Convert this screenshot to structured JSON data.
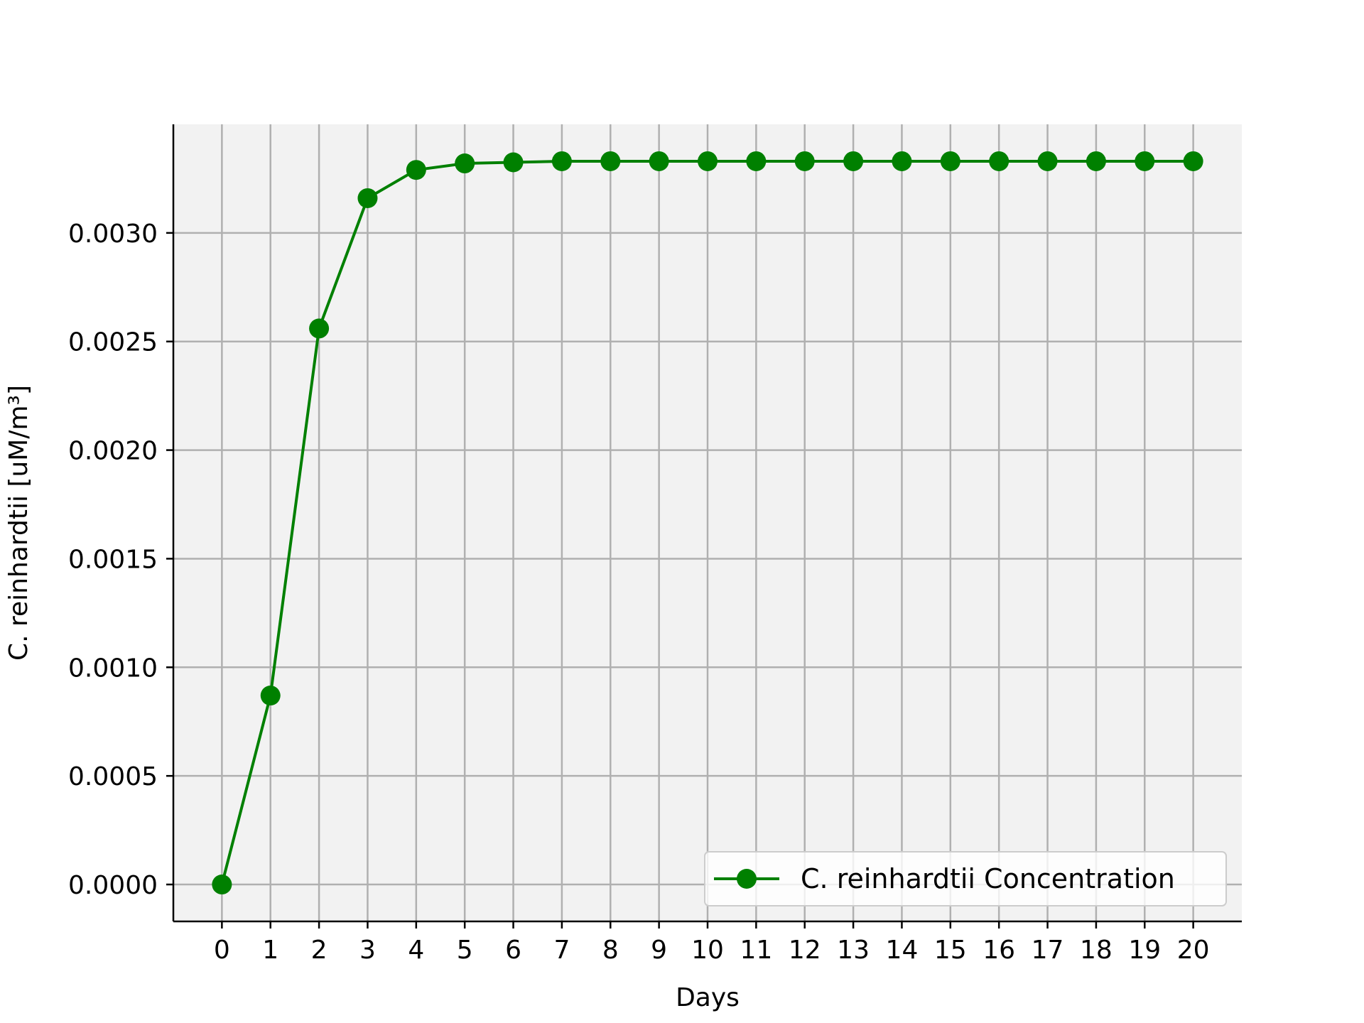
{
  "chart_data": {
    "type": "line",
    "title": "",
    "xlabel": "Days",
    "ylabel": "C. reinhardtii [uM/m³]",
    "x": [
      0,
      1,
      2,
      3,
      4,
      5,
      6,
      7,
      8,
      9,
      10,
      11,
      12,
      13,
      14,
      15,
      16,
      17,
      18,
      19,
      20
    ],
    "series": [
      {
        "name": "C. reinhardtii Concentration",
        "color": "#008000",
        "marker": "circle",
        "values": [
          0.0,
          0.00087,
          0.00256,
          0.00316,
          0.00329,
          0.00332,
          0.003325,
          0.00333,
          0.00333,
          0.00333,
          0.00333,
          0.00333,
          0.00333,
          0.00333,
          0.00333,
          0.00333,
          0.00333,
          0.00333,
          0.00333,
          0.00333,
          0.00333
        ]
      }
    ],
    "xticks": [
      "0",
      "1",
      "2",
      "3",
      "4",
      "5",
      "6",
      "7",
      "8",
      "9",
      "10",
      "11",
      "12",
      "13",
      "14",
      "15",
      "16",
      "17",
      "18",
      "19",
      "20"
    ],
    "yticks": [
      "0.0000",
      "0.0005",
      "0.0010",
      "0.0015",
      "0.0020",
      "0.0025",
      "0.0030"
    ],
    "ytick_values": [
      0.0,
      0.0005,
      0.001,
      0.0015,
      0.002,
      0.0025,
      0.003
    ],
    "xlim": [
      -1,
      21
    ],
    "ylim": [
      -0.00017,
      0.0035
    ],
    "grid": true,
    "legend_position": "lower right",
    "colors": {
      "plot_background": "#f2f2f2",
      "grid": "#b0b0b0",
      "line": "#008000"
    }
  }
}
